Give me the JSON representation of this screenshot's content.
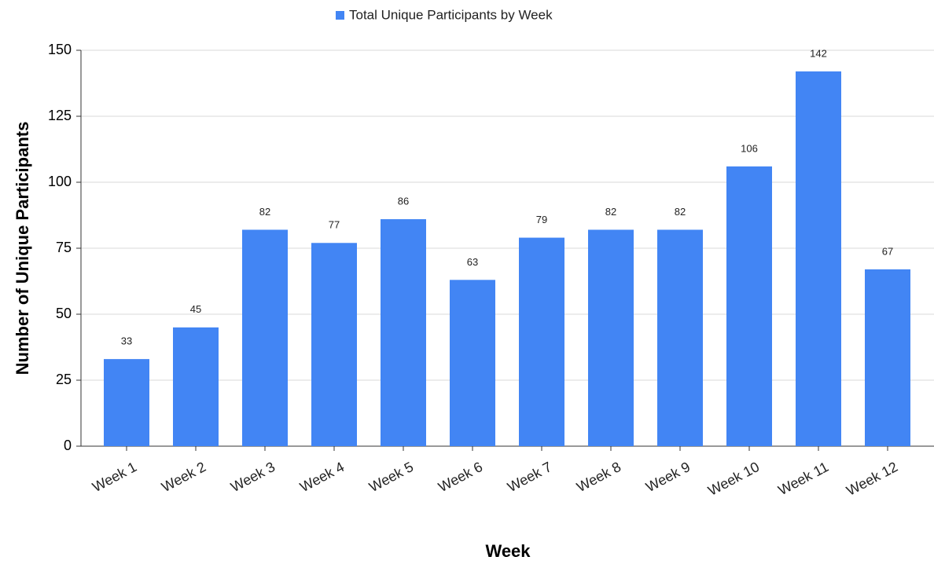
{
  "chart_data": {
    "type": "bar",
    "x_label": "Week",
    "y_label": "Number of Unique Participants",
    "categories": [
      "Week 1",
      "Week 2",
      "Week 3",
      "Week 4",
      "Week 5",
      "Week 6",
      "Week 7",
      "Week 8",
      "Week 9",
      "Week 10",
      "Week 11",
      "Week 12"
    ],
    "series": [
      {
        "name": "Total Unique Participants by Week",
        "color": "#4285f4",
        "values": [
          33,
          45,
          82,
          77,
          86,
          63,
          79,
          82,
          82,
          106,
          142,
          67
        ]
      }
    ],
    "ylim": [
      0,
      150
    ],
    "yticks": [
      0,
      25,
      50,
      75,
      100,
      125,
      150
    ],
    "grid": true,
    "legend": "top"
  }
}
